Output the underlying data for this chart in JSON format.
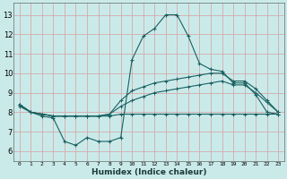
{
  "xlabel": "Humidex (Indice chaleur)",
  "x_ticks": [
    0,
    1,
    2,
    3,
    4,
    5,
    6,
    7,
    8,
    9,
    10,
    11,
    12,
    13,
    14,
    15,
    16,
    17,
    18,
    19,
    20,
    21,
    22,
    23
  ],
  "xlim": [
    -0.5,
    23.5
  ],
  "ylim": [
    5.5,
    13.6
  ],
  "y_ticks": [
    6,
    7,
    8,
    9,
    10,
    11,
    12,
    13
  ],
  "bg_color": "#caeaea",
  "grid_color": "#d4aaaa",
  "line_color": "#1a6060",
  "line1_y": [
    8.4,
    8.0,
    7.8,
    7.7,
    6.5,
    6.3,
    6.7,
    6.5,
    6.5,
    6.7,
    10.7,
    11.9,
    12.3,
    13.0,
    13.0,
    11.9,
    10.5,
    10.2,
    10.1,
    9.5,
    9.5,
    8.9,
    8.0,
    7.9
  ],
  "line2_y": [
    8.4,
    8.0,
    7.9,
    7.8,
    7.8,
    7.8,
    7.8,
    7.8,
    7.9,
    8.6,
    9.1,
    9.3,
    9.5,
    9.6,
    9.7,
    9.8,
    9.9,
    10.0,
    10.0,
    9.6,
    9.6,
    9.2,
    8.6,
    8.0
  ],
  "line3_y": [
    8.4,
    8.0,
    7.9,
    7.8,
    7.8,
    7.8,
    7.8,
    7.8,
    7.9,
    8.3,
    8.6,
    8.8,
    9.0,
    9.1,
    9.2,
    9.3,
    9.4,
    9.5,
    9.6,
    9.4,
    9.4,
    9.0,
    8.5,
    8.0
  ],
  "line4_y": [
    8.3,
    8.0,
    7.9,
    7.8,
    7.8,
    7.8,
    7.8,
    7.8,
    7.8,
    7.9,
    7.9,
    7.9,
    7.9,
    7.9,
    7.9,
    7.9,
    7.9,
    7.9,
    7.9,
    7.9,
    7.9,
    7.9,
    7.9,
    7.9
  ]
}
